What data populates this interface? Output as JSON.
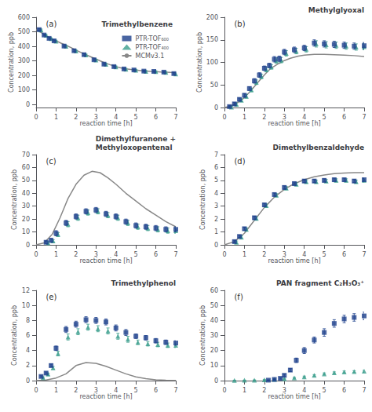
{
  "chart_data": [
    {
      "type": "scatter",
      "title": "Trimethylbenzene",
      "annotation": "(a)",
      "xlabel": "reaction time [h]",
      "ylabel": "Concentration, ppb",
      "xlim": [
        0,
        7
      ],
      "xticks": [
        0,
        1,
        2,
        3,
        4,
        5,
        6,
        7
      ],
      "ylim": [
        -20,
        600
      ],
      "yticks": [
        0,
        100,
        200,
        300,
        400,
        500,
        600
      ],
      "grid": false,
      "legend": "upper right",
      "series": [
        {
          "name": "PTR-TOF₆₀₀",
          "type": "scatter",
          "marker": "square",
          "color": "#1b3f8b",
          "x": [
            0.15,
            0.4,
            0.65,
            0.9,
            1.4,
            1.9,
            2.4,
            2.9,
            3.4,
            3.9,
            4.4,
            4.9,
            5.4,
            5.9,
            6.4,
            6.9
          ],
          "values": [
            515,
            478,
            455,
            438,
            402,
            370,
            343,
            308,
            278,
            261,
            245,
            238,
            230,
            228,
            223,
            213
          ],
          "errors": [
            6,
            6,
            6,
            6,
            6,
            6,
            6,
            6,
            6,
            6,
            6,
            6,
            6,
            6,
            6,
            6
          ]
        },
        {
          "name": "PTR-TOF₄₀₀",
          "type": "scatter",
          "marker": "triangle",
          "color": "#3a9e8c",
          "x": [
            0.25,
            0.5,
            0.75,
            1.0,
            1.5,
            2.0,
            2.5,
            3.0,
            3.5,
            4.0,
            4.5,
            5.0,
            5.5,
            6.0,
            6.5,
            7.0
          ],
          "values": [
            513,
            476,
            453,
            436,
            400,
            368,
            341,
            306,
            276,
            259,
            243,
            236,
            228,
            226,
            221,
            211
          ],
          "errors": [
            6,
            6,
            6,
            6,
            6,
            6,
            6,
            6,
            6,
            6,
            6,
            6,
            6,
            6,
            6,
            6
          ]
        },
        {
          "name": "MCMv3.1",
          "type": "line",
          "color": "#888888",
          "x": [
            0.0,
            0.25,
            0.5,
            0.75,
            1.0,
            1.25,
            1.5,
            1.75,
            2.0,
            2.25,
            2.5,
            2.75,
            3.0,
            3.25,
            3.5,
            3.75,
            4.0,
            4.25,
            4.5,
            4.75,
            5.0,
            5.25,
            5.5,
            5.75,
            6.0,
            6.25,
            6.5,
            6.75,
            7.0
          ],
          "values": [
            515,
            495,
            472,
            455,
            438,
            422,
            407,
            392,
            374,
            358,
            343,
            328,
            313,
            298,
            284,
            272,
            261,
            252,
            246,
            241,
            237,
            234,
            231,
            228,
            226,
            224,
            223,
            221,
            220
          ]
        }
      ]
    },
    {
      "type": "scatter",
      "title": "Methylglyoxal",
      "annotation": "(b)",
      "xlabel": "reaction time [h]",
      "ylabel": "Concentration, ppb",
      "xlim": [
        0,
        7
      ],
      "xticks": [
        0,
        1,
        2,
        3,
        4,
        5,
        6,
        7
      ],
      "ylim": [
        0,
        200
      ],
      "yticks": [
        0,
        50,
        100,
        150,
        200
      ],
      "grid": false,
      "series": [
        {
          "name": "PTR-TOF₆₀₀",
          "type": "scatter",
          "marker": "square",
          "color": "#1b3f8b",
          "x": [
            0.25,
            0.5,
            0.75,
            1.0,
            1.25,
            1.5,
            1.75,
            2.0,
            2.25,
            2.5,
            2.75,
            3.0,
            3.5,
            4.0,
            4.5,
            5.0,
            5.5,
            6.0,
            6.5,
            7.0
          ],
          "values": [
            2,
            8,
            18,
            27,
            42,
            59,
            72,
            87,
            93,
            107,
            108,
            123,
            128,
            132,
            143,
            141,
            140,
            138,
            136,
            137
          ],
          "errors": [
            2,
            3,
            3,
            4,
            4,
            5,
            5,
            5,
            5,
            6,
            6,
            6,
            6,
            6,
            7,
            7,
            7,
            7,
            7,
            7
          ]
        },
        {
          "name": "PTR-TOF₄₀₀",
          "type": "scatter",
          "marker": "triangle",
          "color": "#3a9e8c",
          "x": [
            0.35,
            0.6,
            0.85,
            1.1,
            1.35,
            1.6,
            1.85,
            2.1,
            2.35,
            2.6,
            2.85,
            3.1,
            3.6,
            4.1,
            4.6,
            5.1,
            5.6,
            6.1,
            6.6,
            7.0
          ],
          "values": [
            1,
            7,
            16,
            25,
            39,
            56,
            69,
            84,
            90,
            104,
            105,
            120,
            125,
            129,
            141,
            139,
            138,
            136,
            134,
            135
          ],
          "errors": [
            2,
            3,
            3,
            4,
            4,
            5,
            5,
            5,
            5,
            6,
            6,
            6,
            6,
            6,
            7,
            7,
            7,
            7,
            7,
            7
          ]
        },
        {
          "name": "MCMv3.1",
          "type": "line",
          "color": "#888888",
          "x": [
            0,
            0.3,
            0.7,
            1.0,
            1.3,
            1.7,
            2.0,
            2.3,
            2.7,
            3.0,
            3.3,
            3.7,
            4.0,
            4.5,
            5.0,
            5.5,
            6.0,
            6.5,
            7.0
          ],
          "values": [
            0,
            3,
            12,
            22,
            36,
            57,
            72,
            86,
            97,
            104,
            109,
            114,
            116,
            118,
            118,
            117,
            116,
            115,
            113
          ]
        }
      ]
    },
    {
      "type": "scatter",
      "title": "Dimethylfuranone +\nMethyloxopentenal",
      "annotation": "(c)",
      "xlabel": "reaction time [h]",
      "ylabel": "Concentration, ppb",
      "xlim": [
        0,
        7
      ],
      "xticks": [
        0,
        1,
        2,
        3,
        4,
        5,
        6,
        7
      ],
      "ylim": [
        0,
        70
      ],
      "yticks": [
        0,
        10,
        20,
        30,
        40,
        50,
        60,
        70
      ],
      "grid": false,
      "series": [
        {
          "name": "PTR-TOF₆₀₀",
          "type": "scatter",
          "marker": "square",
          "color": "#1b3f8b",
          "x": [
            0.5,
            0.75,
            1.0,
            1.5,
            2.0,
            2.5,
            3.0,
            3.5,
            4.0,
            4.5,
            5.0,
            5.5,
            6.0,
            6.5,
            7.0
          ],
          "values": [
            2,
            3.5,
            9,
            17,
            22,
            26,
            27,
            24,
            22,
            18,
            15,
            14,
            13,
            12,
            12
          ],
          "errors": [
            1,
            1.5,
            2,
            2,
            2,
            2,
            2,
            2,
            2,
            2,
            2,
            2,
            2,
            2,
            2
          ]
        },
        {
          "name": "PTR-TOF₄₀₀",
          "type": "scatter",
          "marker": "triangle",
          "color": "#3a9e8c",
          "x": [
            0.6,
            0.85,
            1.1,
            1.6,
            2.1,
            2.6,
            3.1,
            3.6,
            4.1,
            4.6,
            5.1,
            5.6,
            6.1,
            6.6,
            7.0
          ],
          "values": [
            1.5,
            3,
            8,
            16,
            21,
            25,
            26,
            23,
            21,
            17,
            14,
            13,
            12,
            11,
            11
          ],
          "errors": [
            1,
            1,
            1.5,
            2,
            2,
            2,
            2,
            2,
            2,
            2,
            2,
            2,
            2,
            2,
            2
          ]
        },
        {
          "name": "MCMv3.1",
          "type": "line",
          "color": "#888888",
          "x": [
            0,
            0.4,
            0.8,
            1.2,
            1.6,
            2.0,
            2.4,
            2.8,
            3.2,
            3.6,
            4.0,
            4.5,
            5.0,
            5.5,
            6.0,
            6.5,
            7.0
          ],
          "values": [
            0,
            1.5,
            8,
            21,
            36,
            47,
            54,
            57,
            56,
            52,
            47,
            40,
            34,
            28,
            23,
            18,
            14
          ]
        }
      ]
    },
    {
      "type": "scatter",
      "title": "Dimethylbenzaldehyde",
      "annotation": "(d)",
      "xlabel": "reaction time [h]",
      "ylabel": "Concentration, ppb",
      "xlim": [
        0,
        7
      ],
      "xticks": [
        0,
        1,
        2,
        3,
        4,
        5,
        6,
        7
      ],
      "ylim": [
        0,
        7
      ],
      "yticks": [
        0,
        1,
        2,
        3,
        4,
        5,
        6,
        7
      ],
      "grid": false,
      "series": [
        {
          "name": "PTR-TOF₆₀₀",
          "type": "scatter",
          "marker": "square",
          "color": "#1b3f8b",
          "x": [
            0.5,
            0.75,
            1.0,
            1.5,
            2.0,
            2.5,
            3.0,
            3.5,
            4.0,
            4.5,
            5.0,
            5.5,
            6.0,
            6.5,
            7.0
          ],
          "values": [
            0.25,
            0.65,
            1.25,
            2.1,
            3.1,
            3.9,
            4.45,
            4.75,
            4.95,
            4.95,
            5.0,
            5.05,
            5.05,
            4.95,
            5.05
          ],
          "errors": [
            0.1,
            0.1,
            0.12,
            0.12,
            0.12,
            0.12,
            0.12,
            0.12,
            0.12,
            0.12,
            0.12,
            0.12,
            0.12,
            0.12,
            0.12
          ]
        },
        {
          "name": "PTR-TOF₄₀₀",
          "type": "scatter",
          "marker": "triangle",
          "color": "#3a9e8c",
          "x": [
            0.6,
            0.85,
            1.1,
            1.6,
            2.1,
            2.6,
            3.1,
            3.6,
            4.1,
            4.6,
            5.1,
            5.6,
            6.1,
            6.6,
            7.0
          ],
          "values": [
            0.2,
            0.6,
            1.2,
            2.05,
            3.05,
            3.85,
            4.4,
            4.7,
            4.9,
            4.9,
            4.95,
            5.0,
            5.0,
            4.9,
            5.0
          ],
          "errors": [
            0.1,
            0.1,
            0.12,
            0.12,
            0.12,
            0.12,
            0.12,
            0.12,
            0.12,
            0.12,
            0.12,
            0.12,
            0.12,
            0.12,
            0.12
          ]
        },
        {
          "name": "MCMv3.1",
          "type": "line",
          "color": "#888888",
          "x": [
            0,
            0.5,
            1.0,
            1.5,
            2.0,
            2.5,
            3.0,
            3.5,
            4.0,
            4.5,
            5.0,
            5.5,
            6.0,
            6.5,
            7.0
          ],
          "values": [
            0,
            0.25,
            0.9,
            1.9,
            2.9,
            3.7,
            4.3,
            4.75,
            5.05,
            5.28,
            5.42,
            5.52,
            5.57,
            5.6,
            5.6
          ]
        }
      ]
    },
    {
      "type": "scatter",
      "title": "Trimethylphenol",
      "annotation": "(e)",
      "xlabel": "reaction time [h]",
      "ylabel": "Concentration, ppb",
      "xlim": [
        0,
        7
      ],
      "xticks": [
        0,
        1,
        2,
        3,
        4,
        5,
        6,
        7
      ],
      "ylim": [
        0,
        12
      ],
      "yticks": [
        0,
        2,
        4,
        6,
        8,
        10,
        12
      ],
      "grid": false,
      "series": [
        {
          "name": "PTR-TOF₆₀₀",
          "type": "scatter",
          "marker": "square",
          "color": "#1b3f8b",
          "x": [
            0.25,
            0.5,
            0.75,
            1.0,
            1.5,
            2.0,
            2.5,
            3.0,
            3.5,
            4.0,
            4.5,
            5.0,
            5.5,
            6.0,
            6.5,
            7.0
          ],
          "values": [
            0.55,
            1.0,
            2.0,
            4.3,
            6.8,
            7.5,
            8.1,
            8.0,
            7.8,
            7.0,
            6.4,
            5.9,
            5.7,
            5.3,
            5.1,
            5.0
          ],
          "errors": [
            0.1,
            0.15,
            0.2,
            0.3,
            0.4,
            0.4,
            0.4,
            0.4,
            0.4,
            0.4,
            0.4,
            0.3,
            0.3,
            0.3,
            0.3,
            0.3
          ]
        },
        {
          "name": "PTR-TOF₄₀₀",
          "type": "scatter",
          "marker": "triangle",
          "color": "#3a9e8c",
          "x": [
            0.35,
            0.6,
            0.85,
            1.1,
            1.6,
            2.1,
            2.6,
            3.1,
            3.6,
            4.1,
            4.6,
            5.1,
            5.6,
            6.1,
            6.6,
            7.0
          ],
          "values": [
            0.4,
            0.85,
            1.7,
            3.6,
            5.8,
            6.5,
            7.1,
            6.9,
            6.6,
            5.9,
            5.5,
            5.1,
            4.9,
            4.8,
            4.7,
            4.7
          ],
          "errors": [
            0.1,
            0.15,
            0.2,
            0.3,
            0.4,
            0.4,
            0.4,
            0.4,
            0.4,
            0.4,
            0.4,
            0.3,
            0.3,
            0.3,
            0.3,
            0.3
          ]
        },
        {
          "name": "MCMv3.1",
          "type": "line",
          "color": "#888888",
          "x": [
            0,
            0.5,
            1.0,
            1.5,
            2.0,
            2.5,
            3.0,
            3.5,
            4.0,
            4.5,
            5.0,
            5.5,
            6.0,
            6.5,
            7.0
          ],
          "values": [
            0,
            0.08,
            0.35,
            0.9,
            2.0,
            2.4,
            2.3,
            1.9,
            1.4,
            0.9,
            0.5,
            0.25,
            0.1,
            0.05,
            0.02
          ]
        }
      ]
    },
    {
      "type": "scatter",
      "title": "PAN fragment C₂H₃O₃⁺",
      "annotation": "(f)",
      "xlabel": "reaction time [h]",
      "ylabel": "Concentration, ppb",
      "xlim": [
        0,
        7
      ],
      "xticks": [
        0,
        1,
        2,
        3,
        4,
        5,
        6,
        7
      ],
      "ylim": [
        0,
        60
      ],
      "yticks": [
        0,
        10,
        20,
        30,
        40,
        50,
        60
      ],
      "grid": false,
      "series": [
        {
          "name": "PTR-TOF₆₀₀",
          "type": "scatter",
          "marker": "square",
          "color": "#1b3f8b",
          "x": [
            2.2,
            2.5,
            2.8,
            3.0,
            3.3,
            3.6,
            4.0,
            4.5,
            5.0,
            5.5,
            6.0,
            6.5,
            7.0
          ],
          "values": [
            0.3,
            0.8,
            1.5,
            3.5,
            7.0,
            13.5,
            20.0,
            27.0,
            32.0,
            38.0,
            41.0,
            42.0,
            43.0
          ],
          "errors": [
            0.2,
            0.3,
            0.5,
            0.8,
            1.0,
            1.5,
            2.0,
            2.0,
            2.5,
            2.5,
            2.5,
            2.5,
            2.5
          ]
        },
        {
          "name": "PTR-TOF₄₀₀",
          "type": "scatter",
          "marker": "triangle",
          "color": "#3a9e8c",
          "x": [
            0.5,
            1.0,
            1.5,
            2.0,
            2.5,
            3.0,
            3.5,
            4.0,
            4.5,
            5.0,
            5.5,
            6.0,
            6.5,
            7.0
          ],
          "values": [
            0.1,
            0.2,
            0.3,
            0.5,
            0.8,
            1.2,
            1.8,
            2.5,
            3.5,
            4.5,
            5.2,
            5.8,
            6.0,
            6.2
          ],
          "errors": [
            0.1,
            0.1,
            0.15,
            0.2,
            0.2,
            0.3,
            0.4,
            0.5,
            0.5,
            0.6,
            0.6,
            0.6,
            0.6,
            0.6
          ]
        }
      ]
    }
  ]
}
